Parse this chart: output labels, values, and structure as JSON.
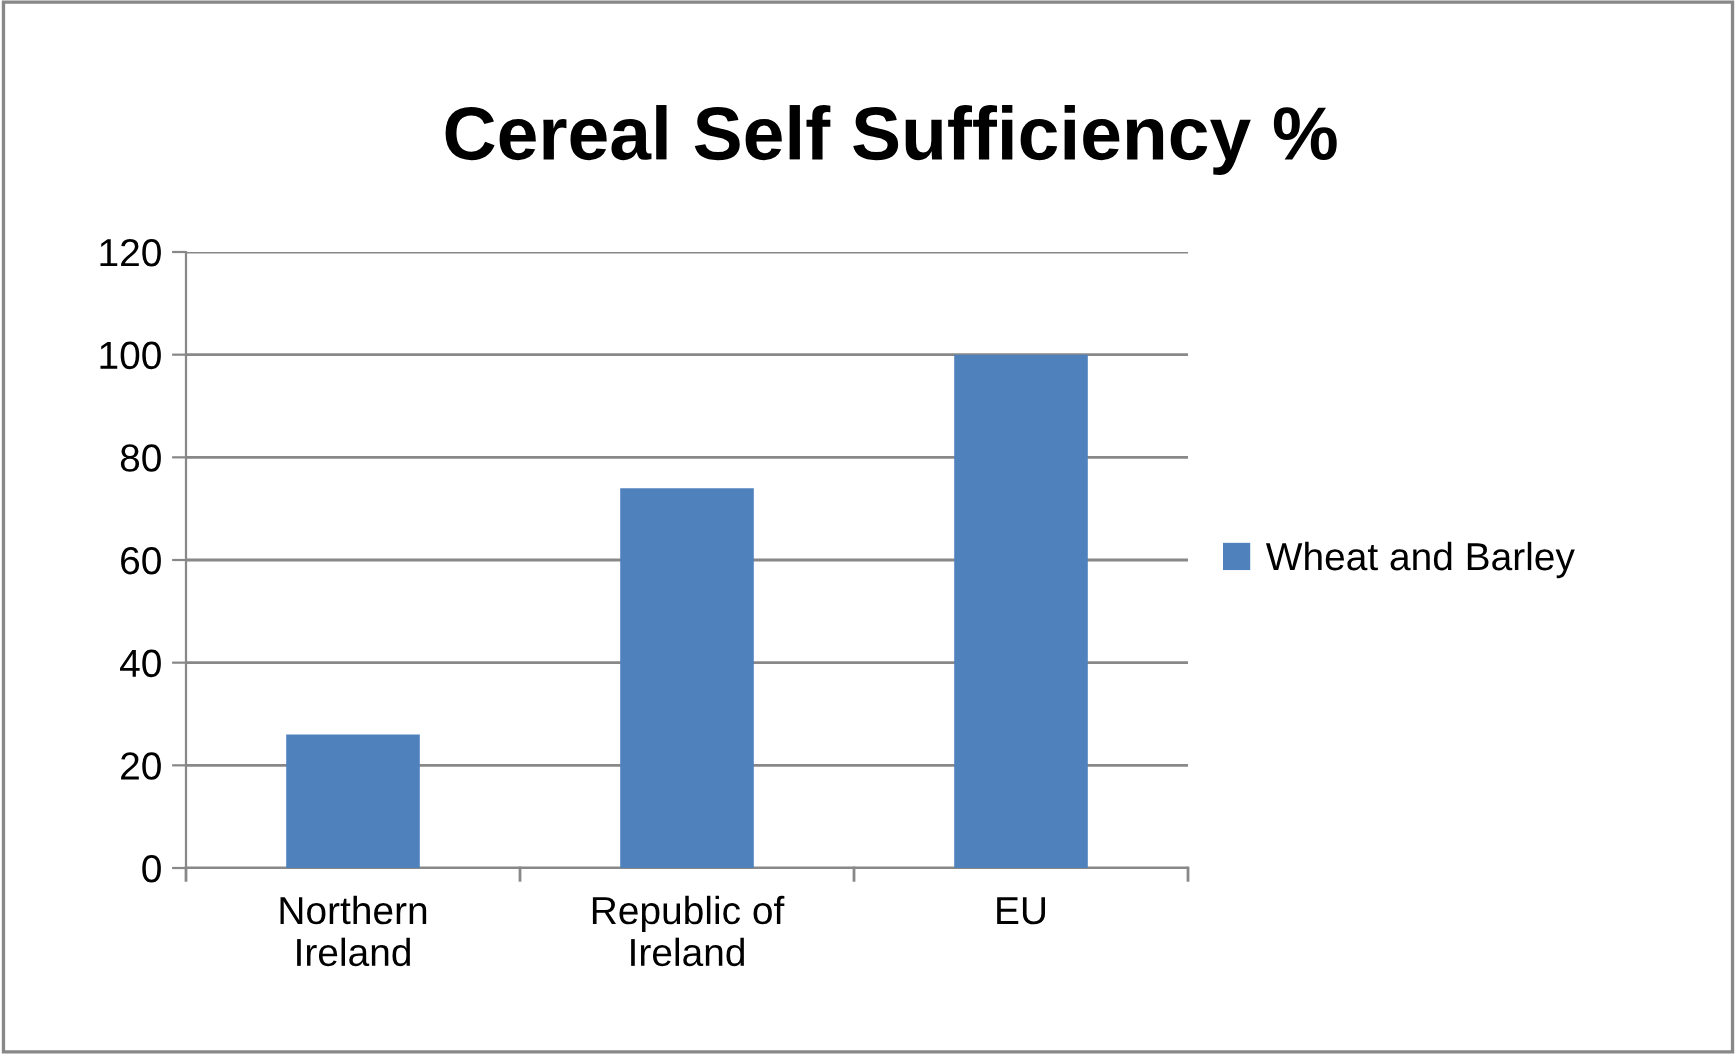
{
  "chart_data": {
    "type": "bar",
    "title": "Cereal Self Sufficiency %",
    "categories": [
      "Northern\nIreland",
      "Republic of\nIreland",
      "EU"
    ],
    "series": [
      {
        "name": "Wheat and Barley",
        "color": "#4f81bd",
        "values": [
          26,
          74,
          100
        ]
      }
    ],
    "ylim": [
      0,
      120
    ],
    "yticks": [
      0,
      20,
      40,
      60,
      80,
      100,
      120
    ],
    "grid": "y",
    "legend": "right"
  }
}
